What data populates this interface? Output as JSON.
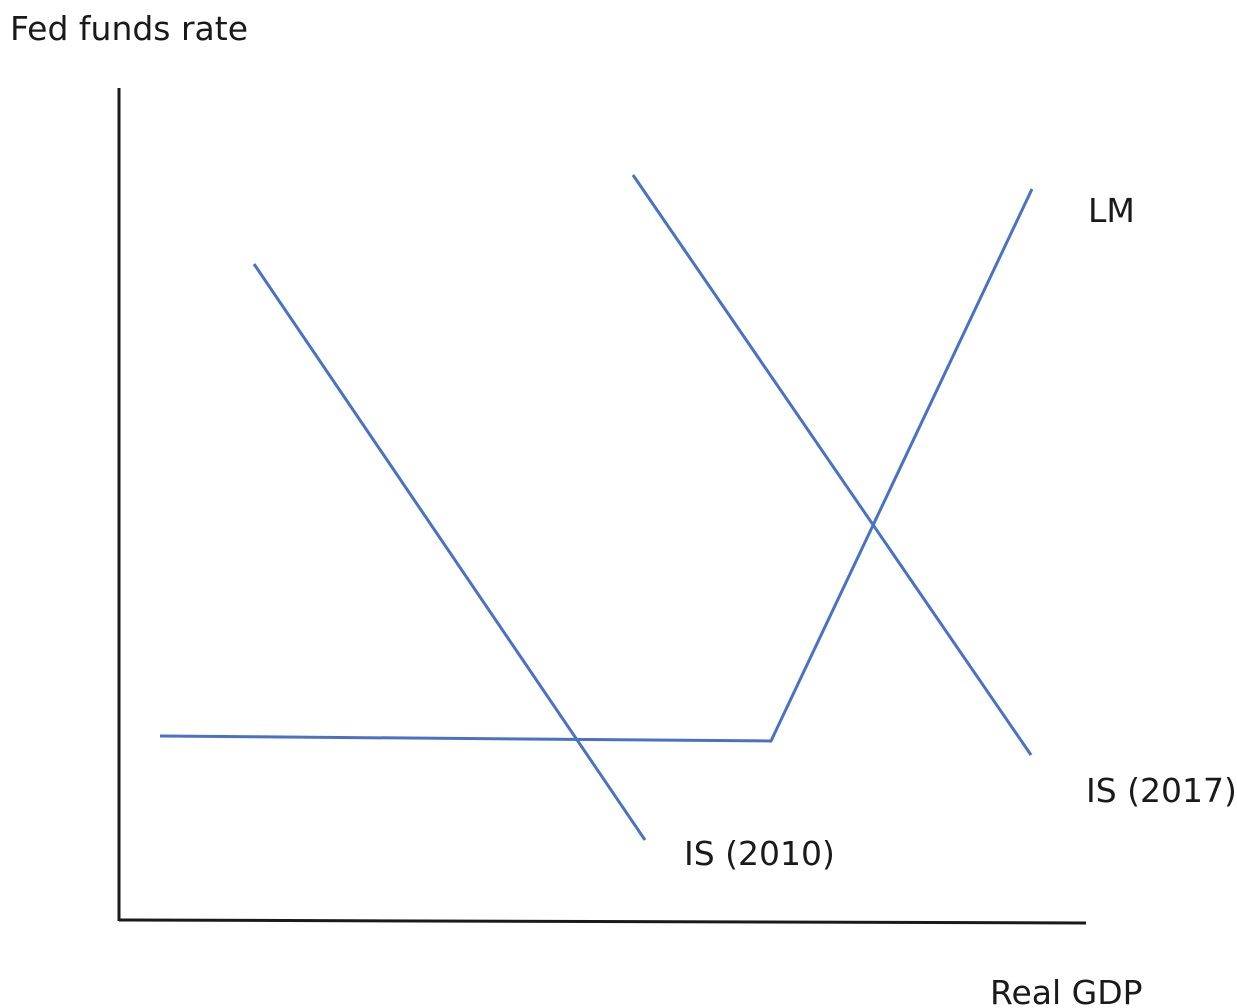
{
  "axes": {
    "y_label": "Fed funds rate",
    "x_label": "Real GDP"
  },
  "curves": {
    "lm": {
      "label": "LM"
    },
    "is_2010": {
      "label": "IS (2010)"
    },
    "is_2017": {
      "label": "IS (2017)"
    }
  },
  "colors": {
    "curve": "#4a72c4",
    "axis": "#1a1a1a",
    "text": "#1a1a1a"
  }
}
